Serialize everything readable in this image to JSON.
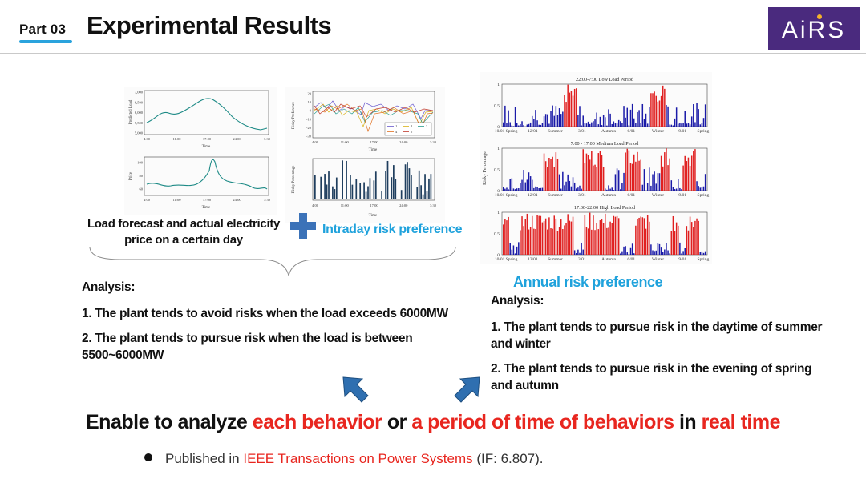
{
  "header": {
    "part_label": "Part 03",
    "title": "Experimental Results",
    "logo_text": "AiRS",
    "logo_colors": {
      "bg": "#4a2a7e",
      "accent": "#f4b22a"
    }
  },
  "left_figure": {
    "caption_load": "Load forecast and actual electricity price on a certain day",
    "caption_intraday": "Intraday risk preference",
    "load_chart": {
      "ylabel": "Predicted Load",
      "xlabel": "Time",
      "yticks": [
        "7,000",
        "6,500",
        "6,000",
        "5,500",
        "5,000"
      ],
      "xticks": [
        "4:00",
        "11:00",
        "17:00",
        "24:00",
        "3:30"
      ]
    },
    "price_chart": {
      "ylabel": "Price",
      "xlabel": "Time",
      "yticks": [
        "100",
        "80",
        "60"
      ],
      "xticks": [
        "4:00",
        "11:00",
        "17:00",
        "24:00",
        "3:30"
      ]
    },
    "risk_pref_chart": {
      "ylabel": "Risky Preference",
      "xlabel": "Time",
      "yticks": [
        "20",
        "10",
        "0",
        "-10",
        "-20",
        "-30"
      ],
      "xticks": [
        "4:00",
        "11:00",
        "17:00",
        "24:00",
        "3:30"
      ],
      "legend": [
        "1",
        "2",
        "3",
        "4",
        "5"
      ]
    },
    "risk_pct_chart": {
      "ylabel": "Risky Percentage",
      "xlabel": "Time",
      "xticks": [
        "4:00",
        "11:00",
        "17:00",
        "24:00",
        "3:30"
      ]
    }
  },
  "right_figure": {
    "caption": "Annual risk preference",
    "ylabel": "Risky Percentage",
    "panels": [
      {
        "title": "22:00-7:00 Low Load Period"
      },
      {
        "title": "7:00 - 17:00 Medium Load Period"
      },
      {
        "title": "17:00-22:00 High Load Period"
      }
    ],
    "yticks": [
      "1",
      "0.5",
      "0"
    ],
    "xticks": [
      "10/01 Spring",
      "12/01",
      "Summer",
      "3/01",
      "Autumn",
      "6/01",
      "Winter",
      "9/01",
      "Spring"
    ]
  },
  "analysis_left": {
    "title": "Analysis:",
    "items": [
      "1. The plant tends to avoid risks when the load exceeds 6000MW",
      "2. The plant tends to pursue risk when the load is between 5500~6000MW"
    ]
  },
  "analysis_right": {
    "title": "Analysis:",
    "items": [
      "1. The plant tends to pursue risk in the daytime of summer and winter",
      "2. The plant tends to pursue risk in the evening of spring and autumn"
    ]
  },
  "summary": {
    "part1": "Enable to analyze ",
    "highlight1": "each behavior",
    "part2": " or ",
    "highlight2": "a period of time of behaviors",
    "part3": " in ",
    "highlight3": "real time"
  },
  "publication": {
    "prefix": "Published in ",
    "venue": "IEEE Transactions on Power Systems",
    "suffix": " (IF: 6.807)."
  },
  "colors": {
    "blue_bar": "#1a1aa8",
    "red_bar": "#e02020",
    "arrow": "#2f6fb0",
    "plus": "#3b72b8",
    "caption": "#1fa2dc"
  }
}
